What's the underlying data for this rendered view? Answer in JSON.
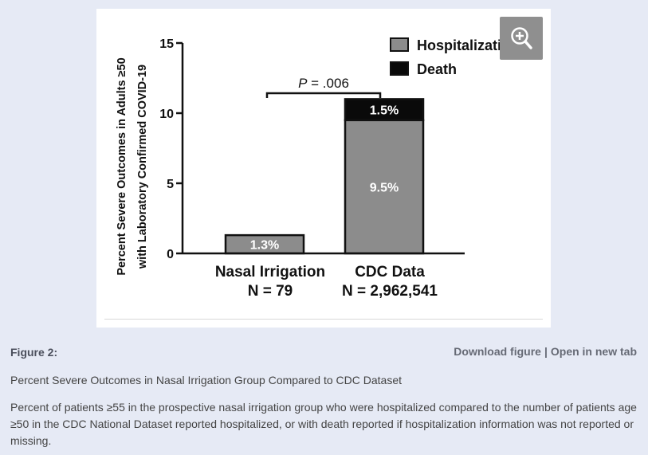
{
  "chart_data": {
    "type": "bar",
    "stacked": true,
    "categories": [
      "Nasal Irrigation",
      "CDC Data"
    ],
    "category_sublabels": [
      "N = 79",
      "N = 2,962,541"
    ],
    "series": [
      {
        "name": "Hospitalization",
        "values": [
          1.3,
          9.5
        ],
        "color": "#8c8c8c"
      },
      {
        "name": "Death",
        "values": [
          0,
          1.5
        ],
        "color": "#0a0a0a"
      }
    ],
    "data_labels": [
      {
        "category": 0,
        "series": 0,
        "text": "1.3%"
      },
      {
        "category": 1,
        "series": 0,
        "text": "9.5%"
      },
      {
        "category": 1,
        "series": 1,
        "text": "1.5%"
      }
    ],
    "ylabel_line1": "Percent Severe Outcomes in Adults ≥50",
    "ylabel_line2": "with Laboratory Confirmed COVID-19",
    "yticks": [
      0,
      5,
      10,
      15
    ],
    "ylim": [
      0,
      15
    ],
    "annotation": {
      "italic": "P",
      "rest": " = .006"
    },
    "legend_placement": "top-right",
    "grid": false
  },
  "ui": {
    "zoom_icon": "zoom-in-icon",
    "figure_label": "Figure 2:",
    "download_link": "Download figure",
    "separator": "|",
    "open_link": "Open in new tab",
    "caption_title": "Percent Severe Outcomes in Nasal Irrigation Group Compared to CDC Dataset",
    "caption_body": "Percent of patients ≥55 in the prospective nasal irrigation group who were hospitalized compared to the number of patients age ≥50 in the CDC National Dataset reported hospitalized, or with death reported if hospitalization information was not reported or missing."
  }
}
